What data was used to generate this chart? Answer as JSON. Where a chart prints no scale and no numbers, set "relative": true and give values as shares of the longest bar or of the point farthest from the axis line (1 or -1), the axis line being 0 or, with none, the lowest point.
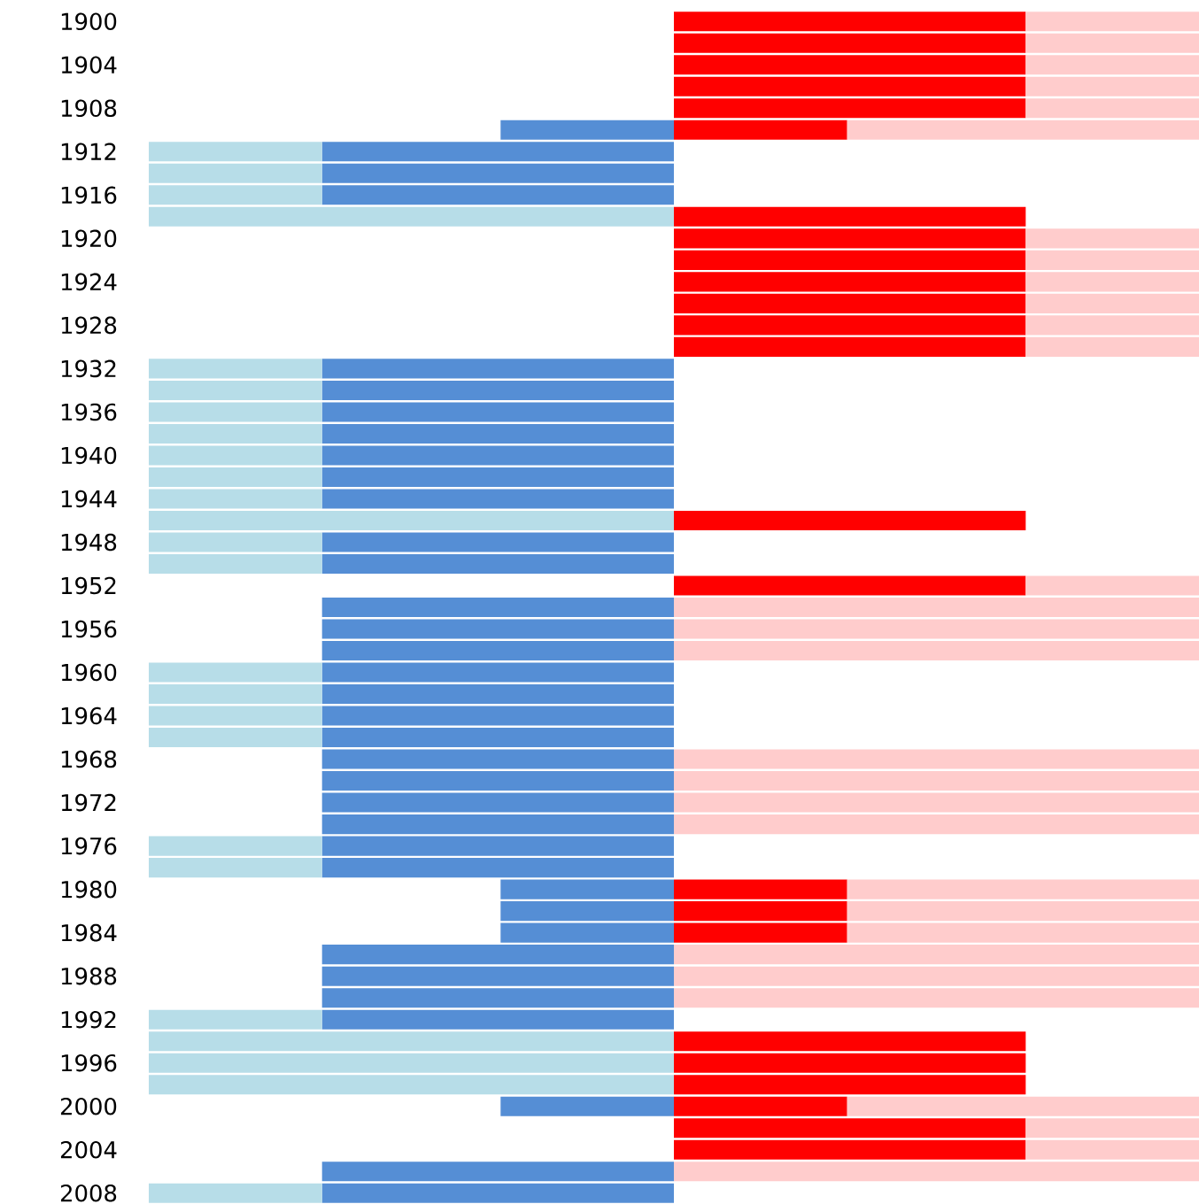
{
  "chart_data": {
    "type": "bar",
    "orientation": "horizontal",
    "relative": true,
    "stacked": true,
    "categories": [
      "1900",
      null,
      "1904",
      null,
      "1908",
      null,
      "1912",
      null,
      "1916",
      null,
      "1920",
      null,
      "1924",
      null,
      "1928",
      null,
      "1932",
      null,
      "1936",
      null,
      "1940",
      null,
      "1944",
      null,
      "1948",
      null,
      "1952",
      null,
      "1956",
      null,
      "1960",
      null,
      "1964",
      null,
      "1968",
      null,
      "1972",
      null,
      "1976",
      null,
      "1980",
      null,
      "1984",
      null,
      "1988",
      null,
      "1992",
      null,
      "1996",
      null,
      "2000",
      null,
      "2004",
      null,
      "2008"
    ],
    "series": [
      {
        "color": "#ff0000",
        "values": [
          0.67,
          0.67,
          0.67,
          0.67,
          0.67,
          0.33,
          null,
          null,
          null,
          0.67,
          0.67,
          0.67,
          0.67,
          0.67,
          0.67,
          0.67,
          null,
          null,
          null,
          null,
          null,
          null,
          null,
          0.67,
          null,
          null,
          0.67,
          null,
          null,
          null,
          null,
          null,
          null,
          null,
          null,
          null,
          null,
          null,
          null,
          null,
          0.33,
          0.33,
          0.33,
          null,
          null,
          null,
          null,
          0.67,
          0.67,
          0.67,
          0.33,
          0.67,
          0.67,
          null,
          null
        ]
      },
      {
        "color": "#ffcccc",
        "values": [
          0.33,
          0.33,
          0.33,
          0.33,
          0.33,
          0.67,
          null,
          null,
          null,
          null,
          0.33,
          0.33,
          0.33,
          0.33,
          0.33,
          0.33,
          null,
          null,
          null,
          null,
          null,
          null,
          null,
          null,
          null,
          null,
          0.33,
          1,
          1,
          1,
          null,
          null,
          null,
          null,
          1,
          1,
          1,
          1,
          null,
          null,
          0.67,
          0.67,
          0.67,
          1,
          1,
          1,
          null,
          null,
          null,
          null,
          0.67,
          0.33,
          0.33,
          1,
          null
        ]
      },
      {
        "color": "#558ed5",
        "values": [
          null,
          null,
          null,
          null,
          null,
          -0.33,
          -0.67,
          -0.67,
          -0.67,
          null,
          null,
          null,
          null,
          null,
          null,
          null,
          -0.67,
          -0.67,
          -0.67,
          -0.67,
          -0.67,
          -0.67,
          -0.67,
          null,
          -0.67,
          -0.67,
          null,
          -0.67,
          -0.67,
          -0.67,
          -0.67,
          -0.67,
          -0.67,
          -0.67,
          -0.67,
          -0.67,
          -0.67,
          -0.67,
          -0.67,
          -0.67,
          -0.33,
          -0.33,
          -0.33,
          -0.67,
          -0.67,
          -0.67,
          -0.67,
          null,
          null,
          null,
          -0.33,
          null,
          null,
          -0.67,
          -0.67
        ]
      },
      {
        "color": "#b7dde8",
        "values": [
          null,
          null,
          null,
          null,
          null,
          null,
          -0.33,
          -0.33,
          -0.33,
          -1,
          null,
          null,
          null,
          null,
          null,
          null,
          -0.33,
          -0.33,
          -0.33,
          -0.33,
          -0.33,
          -0.33,
          -0.33,
          -1,
          -0.33,
          -0.33,
          null,
          null,
          null,
          null,
          -0.33,
          -0.33,
          -0.33,
          -0.33,
          null,
          null,
          null,
          null,
          -0.33,
          -0.33,
          null,
          null,
          null,
          null,
          null,
          null,
          -0.33,
          -1,
          -1,
          -1,
          null,
          null,
          null,
          null,
          -0.33
        ]
      }
    ]
  }
}
